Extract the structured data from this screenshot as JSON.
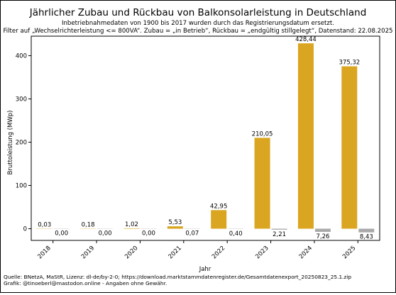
{
  "chart_data": {
    "type": "bar",
    "title": "Jährlicher Zubau und Rückbau von Balkonsolarleistung in Deutschland",
    "subtitle_lines": [
      "Inbetriebnahmedaten von 1900 bis 2017 wurden durch das Registrierungsdatum ersetzt.",
      "Filter auf „Wechselrichterleistung <= 800VA“. Zubau = „in Betrieb“, Rückbau = „endgültig stillgelegt“, Datenstand: 22.08.2025"
    ],
    "xlabel": "Jahr",
    "ylabel": "Bruttoleistung (MWp)",
    "categories": [
      "2018",
      "2019",
      "2020",
      "2021",
      "2022",
      "2023",
      "2024",
      "2025"
    ],
    "ylim": [
      -27,
      445
    ],
    "yticks": [
      0,
      100,
      200,
      300,
      400
    ],
    "grid": false,
    "series": [
      {
        "color": "#DAA520",
        "values": [
          0.03,
          0.18,
          1.02,
          5.53,
          42.95,
          210.05,
          428.44,
          375.32
        ],
        "labels": [
          "0,03",
          "0,18",
          "1,02",
          "5,53",
          "42,95",
          "210,05",
          "428,44",
          "375,32"
        ]
      },
      {
        "color": "#A9A9A9",
        "values": [
          0.0,
          0.0,
          0.0,
          -0.07,
          -0.4,
          -2.21,
          -7.26,
          -8.43
        ],
        "labels": [
          "0,00",
          "0,00",
          "0,00",
          "0,07",
          "0,40",
          "2,21",
          "7,26",
          "8,43"
        ]
      }
    ]
  },
  "footer": {
    "source_line": "Quelle: BNetzA, MaStR, Lizenz: dl-de/by-2-0; https://download.marktstammdatenregister.de/Gesamtdatenexport_20250823_25.1.zip",
    "credit_line": "Grafik: @tinoeberl@mastodon.online - Angaben ohne Gewähr."
  }
}
